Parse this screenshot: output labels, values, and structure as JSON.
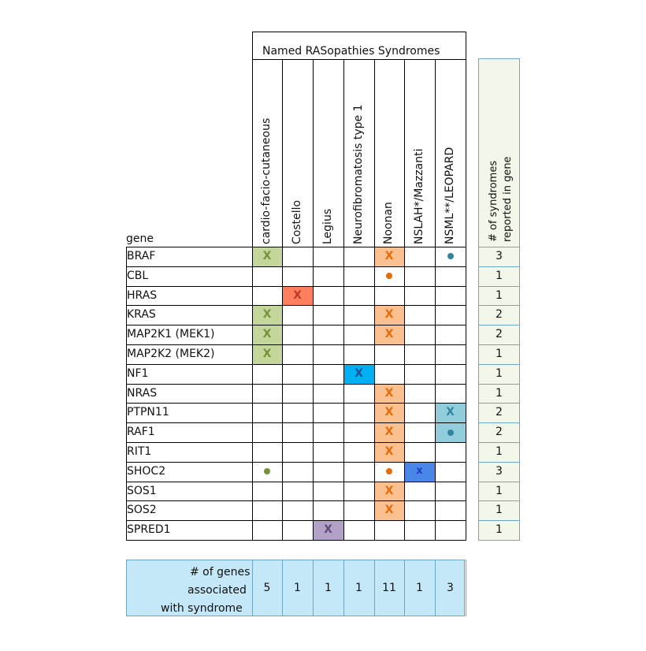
{
  "header": {
    "title": "Named RASopathies Syndromes",
    "gene_label": "gene"
  },
  "syndromes": [
    {
      "name": "cardio-facio-cutaneous",
      "gene_count": "5"
    },
    {
      "name": "Costello",
      "gene_count": "1"
    },
    {
      "name": "Legius",
      "gene_count": "1"
    },
    {
      "name": "Neurofibromatosis type 1",
      "gene_count": "1"
    },
    {
      "name": "Noonan",
      "gene_count": "11"
    },
    {
      "name": "NSLAH*/Mazzanti",
      "gene_count": "1"
    },
    {
      "name": "NSML**/LEOPARD",
      "gene_count": "3"
    }
  ],
  "totals_column": {
    "label_line1": "# of syndromes",
    "label_line2": "reported in gene"
  },
  "summary": {
    "label_line1": "# of genes",
    "label_line2": "associated",
    "label_line3": "with syndrome"
  },
  "colors": {
    "cfc_fill": "#c4d79b",
    "cfc_mark": "#76923c",
    "costello_fill": "#ff7f5f",
    "costello_mark": "#c0392b",
    "legius_fill": "#b3a2c7",
    "legius_mark": "#5f497a",
    "nf1_fill": "#00b0f0",
    "nf1_mark": "#1f4e9a",
    "noonan_fill": "#fac090",
    "noonan_mark": "#e36c0a",
    "nslah_fill": "#4a86e8",
    "nslah_mark": "#1f3fbf",
    "nsml_fill": "#92cddc",
    "nsml_mark": "#31859c",
    "panel_fill": "#f2f7ea",
    "panel_border": "#6ea6c8",
    "summary_fill": "#c5e8f8",
    "summary_border": "#6ea6c8"
  },
  "genes": [
    {
      "name": "BRAF",
      "count": "3",
      "cells": [
        {
          "col": 0,
          "mark": "X"
        },
        {
          "col": 4,
          "mark": "X"
        },
        {
          "col": 6,
          "mark": "dot",
          "nofill": true
        }
      ]
    },
    {
      "name": "CBL",
      "count": "1",
      "cells": [
        {
          "col": 4,
          "mark": "dot",
          "nofill": true
        }
      ]
    },
    {
      "name": "HRAS",
      "count": "1",
      "cells": [
        {
          "col": 1,
          "mark": "X"
        }
      ]
    },
    {
      "name": "KRAS",
      "count": "2",
      "cells": [
        {
          "col": 0,
          "mark": "X"
        },
        {
          "col": 4,
          "mark": "X"
        }
      ]
    },
    {
      "name": "MAP2K1 (MEK1)",
      "count": "2",
      "cells": [
        {
          "col": 0,
          "mark": "X"
        },
        {
          "col": 4,
          "mark": "X"
        }
      ]
    },
    {
      "name": "MAP2K2 (MEK2)",
      "count": "1",
      "cells": [
        {
          "col": 0,
          "mark": "X"
        }
      ]
    },
    {
      "name": "NF1",
      "count": "1",
      "cells": [
        {
          "col": 3,
          "mark": "X"
        }
      ]
    },
    {
      "name": "NRAS",
      "count": "1",
      "cells": [
        {
          "col": 4,
          "mark": "X"
        }
      ]
    },
    {
      "name": "PTPN11",
      "count": "2",
      "cells": [
        {
          "col": 4,
          "mark": "X"
        },
        {
          "col": 6,
          "mark": "X"
        }
      ]
    },
    {
      "name": "RAF1",
      "count": "2",
      "cells": [
        {
          "col": 4,
          "mark": "X"
        },
        {
          "col": 6,
          "mark": "dot"
        }
      ]
    },
    {
      "name": "RIT1",
      "count": "1",
      "cells": [
        {
          "col": 4,
          "mark": "X"
        }
      ]
    },
    {
      "name": "SHOC2",
      "count": "3",
      "cells": [
        {
          "col": 0,
          "mark": "dot",
          "nofill": true
        },
        {
          "col": 4,
          "mark": "dot",
          "nofill": true
        },
        {
          "col": 5,
          "mark": "x"
        }
      ]
    },
    {
      "name": "SOS1",
      "count": "1",
      "cells": [
        {
          "col": 4,
          "mark": "X"
        }
      ]
    },
    {
      "name": "SOS2",
      "count": "1",
      "cells": [
        {
          "col": 4,
          "mark": "X"
        }
      ]
    },
    {
      "name": "SPRED1",
      "count": "1",
      "cells": [
        {
          "col": 2,
          "mark": "X"
        }
      ]
    }
  ]
}
